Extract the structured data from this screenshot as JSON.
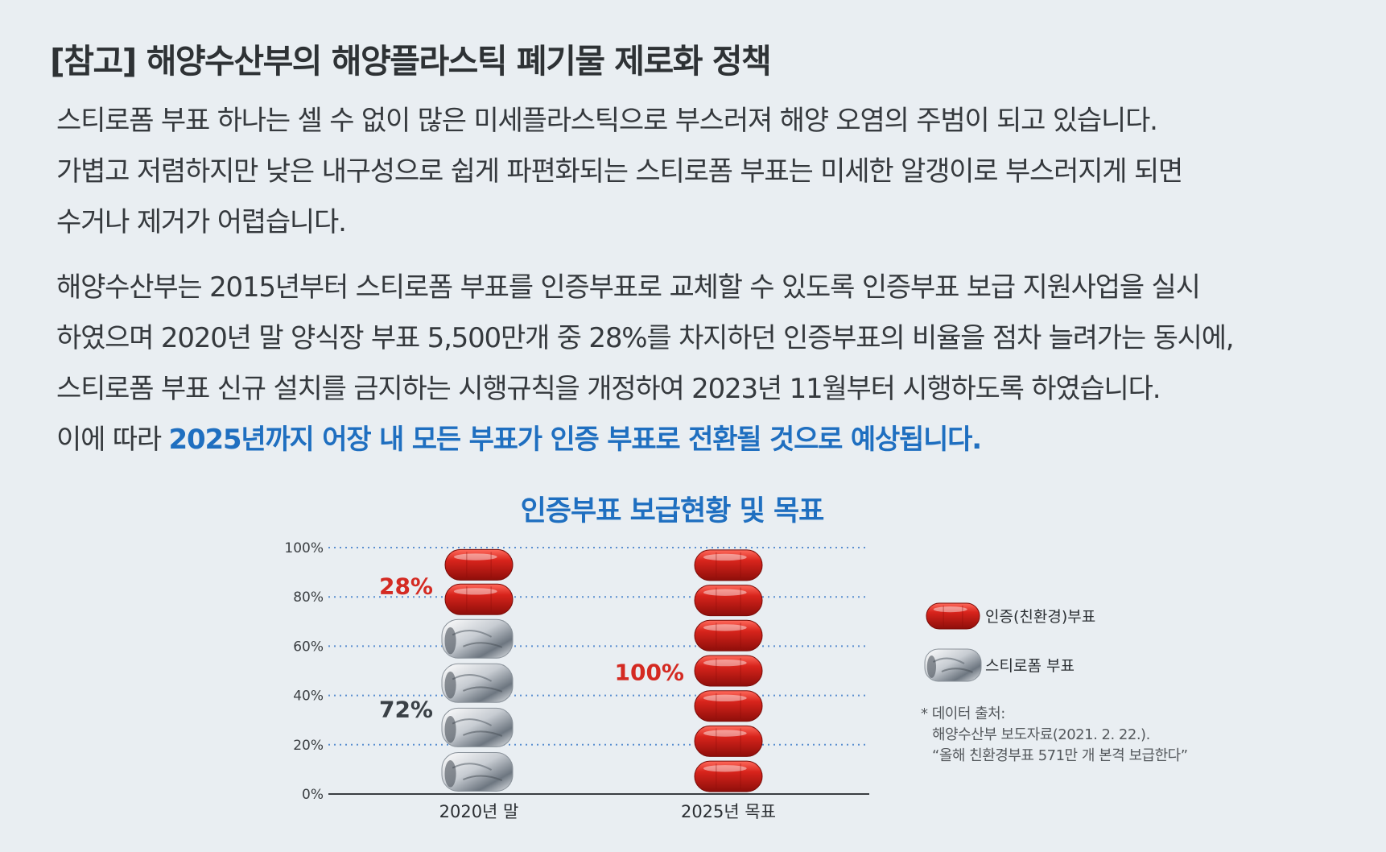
{
  "heading": "[참고] 해양수산부의 해양플라스틱 폐기물 제로화 정책",
  "paragraph1": [
    "스티로폼 부표 하나는 셀 수 없이 많은 미세플라스틱으로 부스러져 해양 오염의 주범이 되고 있습니다.",
    "가볍고 저렴하지만 낮은 내구성으로 쉽게 파편화되는 스티로폼 부표는 미세한 알갱이로 부스러지게 되면",
    "수거나 제거가 어렵습니다."
  ],
  "paragraph2": [
    "해양수산부는 2015년부터 스티로폼 부표를 인증부표로 교체할 수 있도록 인증부표 보급 지원사업을 실시",
    "하였으며 2020년 말 양식장 부표 5,500만개 중 28%를 차지하던 인증부표의 비율을 점차 늘려가는 동시에,",
    "스티로폼 부표 신규 설치를 금지하는 시행규칙을 개정하여 2023년 11월부터 시행하도록 하였습니다."
  ],
  "paragraph2_last_prefix": "이에 따라 ",
  "paragraph2_last_highlight": "2025년까지 어장 내 모든 부표가 인증 부표로 전환될 것으로 예상됩니다.",
  "source_note": {
    "label": "* 데이터 출처:",
    "line1": "해양수산부 보도자료(2021. 2. 22.).",
    "line2": "“올해 친환경부표 571만 개 본격 보급한다”"
  },
  "colors": {
    "certified": "#d42a22",
    "styrofoam": "#c9ced3",
    "highlight": "#1f6fc0",
    "grid": "#5b8fd0"
  },
  "chart_data": {
    "type": "bar",
    "title": "인증부표 보급현황 및 목표",
    "categories": [
      "2020년 말",
      "2025년 목표"
    ],
    "series": [
      {
        "name": "인증(친환경)부표",
        "values": [
          28,
          100
        ],
        "color": "#d42a22"
      },
      {
        "name": "스티로폼 부표",
        "values": [
          72,
          0
        ],
        "color": "#c9ced3"
      }
    ],
    "data_labels": [
      {
        "category": "2020년 말",
        "series": "인증(친환경)부표",
        "text": "28%"
      },
      {
        "category": "2020년 말",
        "series": "스티로폼 부표",
        "text": "72%"
      },
      {
        "category": "2025년 목표",
        "series": "인증(친환경)부표",
        "text": "100%"
      }
    ],
    "y_ticks": [
      "0%",
      "20%",
      "40%",
      "60%",
      "80%",
      "100%"
    ],
    "ylim": [
      0,
      100
    ],
    "stacked": true,
    "grid": true,
    "legend_position": "right"
  }
}
